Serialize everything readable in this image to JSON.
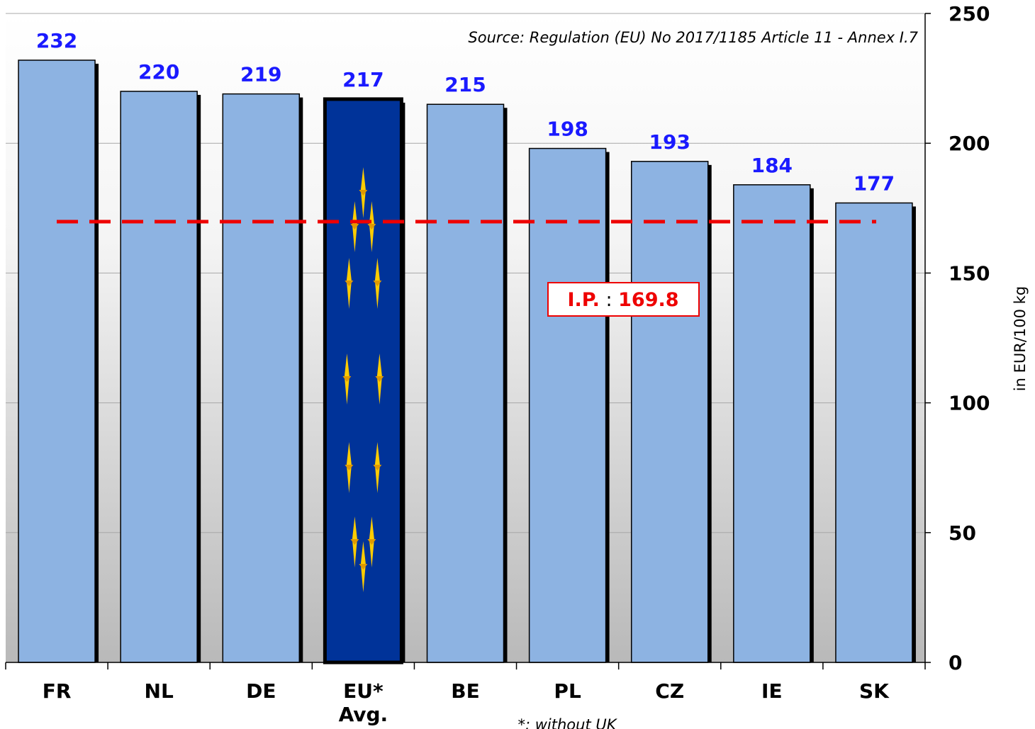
{
  "chart_data": {
    "type": "bar",
    "categories": [
      "FR",
      "NL",
      "DE",
      "EU*\nAvg.",
      "BE",
      "PL",
      "CZ",
      "IE",
      "SK"
    ],
    "values": [
      232,
      220,
      219,
      217,
      215,
      198,
      193,
      184,
      177
    ],
    "value_labels": [
      "232",
      "220",
      "219",
      "217",
      "215",
      "198",
      "193",
      "184",
      "177"
    ],
    "highlight_category": "EU*\nAvg.",
    "ylim": [
      0,
      250
    ],
    "yticks": [
      0,
      50,
      100,
      150,
      200,
      250
    ],
    "ylabel": "in  EUR/100  kg",
    "y_axis_position": "right",
    "grid": true,
    "reference_line": {
      "value": 169.8,
      "label_prefix": "I.P.",
      "label_sep": " : ",
      "label_value": "169.8",
      "color": "#ee0000",
      "style": "dashed"
    },
    "source": "Source: Regulation (EU) No 2017/1185 Article 11 - Annex I.7",
    "footnote": "*: without UK",
    "colors": {
      "bar": "#8db3e2",
      "highlight_bar": "#003399",
      "stars": "#ffcc00",
      "value_labels": "#1a1aff"
    }
  }
}
